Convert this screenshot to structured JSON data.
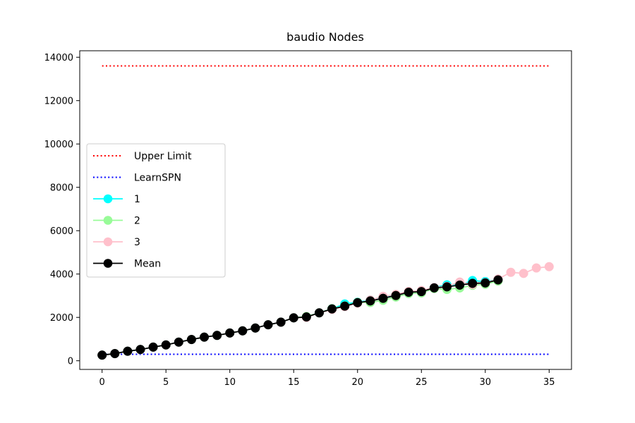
{
  "chart_data": {
    "type": "line",
    "title": "baudio Nodes",
    "xlabel": "",
    "ylabel": "",
    "xlim": [
      -1.75,
      36.75
    ],
    "ylim": [
      -400,
      14300
    ],
    "xticks": [
      0,
      5,
      10,
      15,
      20,
      25,
      30,
      35
    ],
    "yticks": [
      0,
      2000,
      4000,
      6000,
      8000,
      10000,
      12000,
      14000
    ],
    "grid": false,
    "legend_position": "center-left",
    "series": [
      {
        "name": "Upper Limit",
        "style": "dotted",
        "color": "#ff0000",
        "x": [
          0,
          35
        ],
        "y": [
          13600,
          13600
        ]
      },
      {
        "name": "LearnSPN",
        "style": "dotted",
        "color": "#0000ff",
        "x": [
          0,
          35
        ],
        "y": [
          300,
          300
        ]
      },
      {
        "name": "1",
        "style": "line-marker",
        "color": "#00ffff",
        "x": [
          0,
          1,
          2,
          3,
          4,
          5,
          6,
          7,
          8,
          9,
          10,
          11,
          12,
          13,
          14,
          15,
          16,
          17,
          18,
          19,
          20,
          21,
          22,
          23,
          24,
          25,
          26,
          27,
          28,
          29,
          30,
          31
        ],
        "y": [
          260,
          330,
          440,
          520,
          630,
          730,
          860,
          980,
          1090,
          1170,
          1280,
          1380,
          1510,
          1660,
          1780,
          1980,
          2030,
          2210,
          2400,
          2620,
          2700,
          2800,
          2890,
          3040,
          3170,
          3210,
          3380,
          3500,
          3490,
          3700,
          3650,
          3750
        ]
      },
      {
        "name": "2",
        "style": "line-marker",
        "color": "#98fb98",
        "x": [
          0,
          1,
          2,
          3,
          4,
          5,
          6,
          7,
          8,
          9,
          10,
          11,
          12,
          13,
          14,
          15,
          16,
          17,
          18,
          19,
          20,
          21,
          22,
          23,
          24,
          25,
          26,
          27,
          28,
          29,
          30,
          31
        ],
        "y": [
          260,
          330,
          440,
          520,
          630,
          730,
          860,
          980,
          1090,
          1170,
          1280,
          1380,
          1510,
          1660,
          1780,
          1980,
          2040,
          2210,
          2400,
          2530,
          2690,
          2690,
          2790,
          2940,
          3100,
          3130,
          3330,
          3290,
          3360,
          3480,
          3530,
          3680
        ]
      },
      {
        "name": "3",
        "style": "line-marker",
        "color": "#ffc0cb",
        "x": [
          0,
          1,
          2,
          3,
          4,
          5,
          6,
          7,
          8,
          9,
          10,
          11,
          12,
          13,
          14,
          15,
          16,
          17,
          18,
          19,
          20,
          21,
          22,
          23,
          24,
          25,
          26,
          27,
          28,
          29,
          30,
          31,
          32,
          33,
          34,
          35
        ],
        "y": [
          260,
          330,
          440,
          520,
          630,
          730,
          860,
          980,
          1090,
          1170,
          1280,
          1380,
          1510,
          1660,
          1780,
          1980,
          2000,
          2210,
          2370,
          2500,
          2660,
          2800,
          2970,
          3060,
          3200,
          3240,
          3380,
          3430,
          3630,
          3520,
          3600,
          3770,
          4080,
          4030,
          4280,
          4340
        ]
      },
      {
        "name": "Mean",
        "style": "line-marker",
        "color": "#000000",
        "x": [
          0,
          1,
          2,
          3,
          4,
          5,
          6,
          7,
          8,
          9,
          10,
          11,
          12,
          13,
          14,
          15,
          16,
          17,
          18,
          19,
          20,
          21,
          22,
          23,
          24,
          25,
          26,
          27,
          28,
          29,
          30,
          31
        ],
        "y": [
          260,
          330,
          440,
          520,
          630,
          730,
          860,
          980,
          1090,
          1170,
          1280,
          1380,
          1510,
          1660,
          1780,
          1980,
          2020,
          2210,
          2390,
          2520,
          2680,
          2760,
          2880,
          3010,
          3160,
          3190,
          3360,
          3410,
          3490,
          3570,
          3590,
          3730
        ]
      }
    ]
  }
}
